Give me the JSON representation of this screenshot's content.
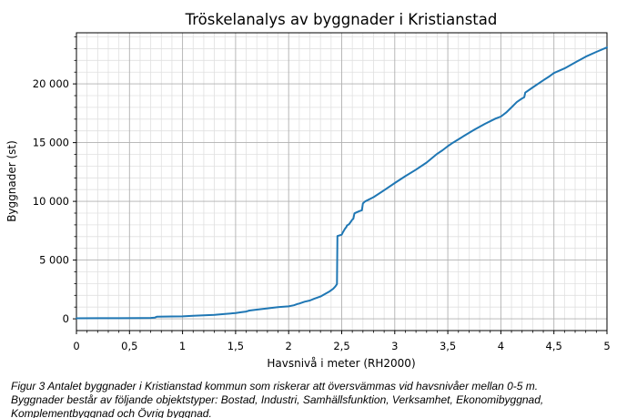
{
  "chart_data": {
    "type": "line",
    "title": "Tröskelanalys av byggnader i Kristianstad",
    "xlabel": "Havsnivå i meter (RH2000)",
    "ylabel": "Byggnader (st)",
    "xlim": [
      0,
      5
    ],
    "ylim": [
      -1000,
      24350
    ],
    "grid": "both",
    "legend_position": "none",
    "line_color": "#1f77b4",
    "line_width": 2,
    "major_grid_color": "#b0b0b0",
    "minor_grid_color": "#e0e0e0",
    "x_ticks": [
      {
        "v": 0,
        "label": "0"
      },
      {
        "v": 0.5,
        "label": "0,5"
      },
      {
        "v": 1,
        "label": "1"
      },
      {
        "v": 1.5,
        "label": "1,5"
      },
      {
        "v": 2,
        "label": "2"
      },
      {
        "v": 2.5,
        "label": "2,5"
      },
      {
        "v": 3,
        "label": "3"
      },
      {
        "v": 3.5,
        "label": "3,5"
      },
      {
        "v": 4,
        "label": "4"
      },
      {
        "v": 4.5,
        "label": "4,5"
      },
      {
        "v": 5,
        "label": "5"
      }
    ],
    "y_ticks": [
      {
        "v": 0,
        "label": "0"
      },
      {
        "v": 5000,
        "label": "5 000"
      },
      {
        "v": 10000,
        "label": "10 000"
      },
      {
        "v": 15000,
        "label": "15 000"
      },
      {
        "v": 20000,
        "label": "20 000"
      }
    ],
    "x_minor_step": 0.1,
    "y_minor_step": 1000,
    "series": [
      {
        "name": "Byggnader",
        "points": [
          [
            0,
            50
          ],
          [
            0.2,
            52
          ],
          [
            0.4,
            56
          ],
          [
            0.6,
            66
          ],
          [
            0.7,
            80
          ],
          [
            0.74,
            110
          ],
          [
            0.76,
            185
          ],
          [
            0.9,
            198
          ],
          [
            1.0,
            212
          ],
          [
            1.1,
            252
          ],
          [
            1.2,
            292
          ],
          [
            1.3,
            340
          ],
          [
            1.4,
            420
          ],
          [
            1.5,
            492
          ],
          [
            1.55,
            560
          ],
          [
            1.6,
            622
          ],
          [
            1.63,
            705
          ],
          [
            1.7,
            780
          ],
          [
            1.8,
            892
          ],
          [
            1.9,
            990
          ],
          [
            2.0,
            1062
          ],
          [
            2.05,
            1155
          ],
          [
            2.08,
            1255
          ],
          [
            2.1,
            1300
          ],
          [
            2.15,
            1455
          ],
          [
            2.2,
            1560
          ],
          [
            2.24,
            1705
          ],
          [
            2.3,
            1900
          ],
          [
            2.33,
            2055
          ],
          [
            2.38,
            2305
          ],
          [
            2.42,
            2555
          ],
          [
            2.44,
            2755
          ],
          [
            2.455,
            2960
          ],
          [
            2.46,
            7050
          ],
          [
            2.5,
            7160
          ],
          [
            2.51,
            7350
          ],
          [
            2.53,
            7650
          ],
          [
            2.545,
            7830
          ],
          [
            2.55,
            7950
          ],
          [
            2.57,
            8060
          ],
          [
            2.6,
            8450
          ],
          [
            2.61,
            8520
          ],
          [
            2.62,
            8980
          ],
          [
            2.64,
            9060
          ],
          [
            2.67,
            9180
          ],
          [
            2.69,
            9240
          ],
          [
            2.7,
            9820
          ],
          [
            2.72,
            9990
          ],
          [
            2.8,
            10360
          ],
          [
            2.9,
            10950
          ],
          [
            3.0,
            11560
          ],
          [
            3.1,
            12150
          ],
          [
            3.2,
            12700
          ],
          [
            3.3,
            13300
          ],
          [
            3.4,
            14050
          ],
          [
            3.45,
            14350
          ],
          [
            3.5,
            14700
          ],
          [
            3.55,
            15000
          ],
          [
            3.65,
            15560
          ],
          [
            3.75,
            16100
          ],
          [
            3.85,
            16600
          ],
          [
            3.95,
            17050
          ],
          [
            4.0,
            17220
          ],
          [
            4.05,
            17560
          ],
          [
            4.1,
            18000
          ],
          [
            4.15,
            18450
          ],
          [
            4.2,
            18760
          ],
          [
            4.22,
            18860
          ],
          [
            4.23,
            19260
          ],
          [
            4.3,
            19700
          ],
          [
            4.4,
            20300
          ],
          [
            4.45,
            20600
          ],
          [
            4.5,
            20920
          ],
          [
            4.6,
            21320
          ],
          [
            4.7,
            21820
          ],
          [
            4.8,
            22320
          ],
          [
            4.9,
            22720
          ],
          [
            5.0,
            23100
          ]
        ]
      }
    ]
  },
  "caption": {
    "line1": "Figur 3 Antalet byggnader i Kristianstad kommun som riskerar att översvämmas vid havsnivåer mellan 0-5 m.",
    "line2": "Byggnader består av följande objektstyper: Bostad, Industri, Samhällsfunktion, Verksamhet, Ekonomibyggnad,",
    "line3": "Komplementbyggnad och Övrig byggnad."
  }
}
